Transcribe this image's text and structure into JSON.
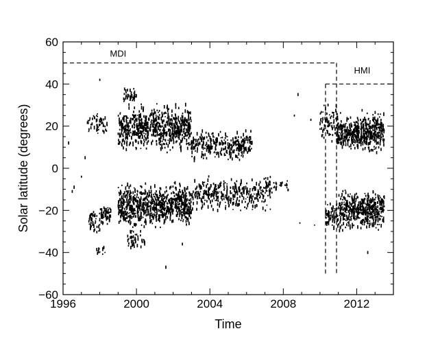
{
  "chart_data": {
    "type": "scatter",
    "xlabel": "Time",
    "ylabel": "Solar latitude (degrees)",
    "xlim": [
      1996,
      2014
    ],
    "ylim": [
      -60,
      60
    ],
    "x_ticks": [
      1996,
      2000,
      2004,
      2008,
      2012
    ],
    "y_ticks": [
      -60,
      -40,
      -20,
      0,
      20,
      40,
      60
    ],
    "x_tick_labels": [
      "1996",
      "2000",
      "2004",
      "2008",
      "2012"
    ],
    "y_tick_labels": [
      "−60",
      "−40",
      "−20",
      "0",
      "20",
      "40",
      "60"
    ],
    "grid": false,
    "legend": "none",
    "marker_color": "#000000",
    "annotations": [
      {
        "label": "MDI",
        "x": 1999.0,
        "y": 53
      },
      {
        "label": "HMI",
        "x": 2012.3,
        "y": 45
      }
    ],
    "instrument_windows": [
      {
        "name": "MDI",
        "x": [
          1996,
          2010.9
        ],
        "y_top": 50,
        "y_bottom": -50
      },
      {
        "name": "HMI",
        "x": [
          2010.3,
          2014
        ],
        "y_top": 40,
        "y_bottom": -50
      }
    ],
    "clusters": [
      {
        "name": "north-1997",
        "x": [
          1997.3,
          1998.4
        ],
        "y": [
          15,
          28
        ],
        "n": 50
      },
      {
        "name": "north-1999-2003",
        "x": [
          1999.0,
          2003.0
        ],
        "y": [
          6,
          32
        ],
        "n": 700
      },
      {
        "name": "north-1999-peak",
        "x": [
          1999.3,
          2000.0
        ],
        "y": [
          30,
          39
        ],
        "n": 40
      },
      {
        "name": "north-2003-2006",
        "x": [
          2003.0,
          2006.3
        ],
        "y": [
          2,
          20
        ],
        "n": 300
      },
      {
        "name": "north-2010-2011",
        "x": [
          2010.0,
          2011.0
        ],
        "y": [
          10,
          32
        ],
        "n": 80
      },
      {
        "name": "north-2011-2013",
        "x": [
          2010.9,
          2013.5
        ],
        "y": [
          6,
          28
        ],
        "n": 500
      },
      {
        "name": "south-1997",
        "x": [
          1997.4,
          1998.0
        ],
        "y": [
          -32,
          -18
        ],
        "n": 40
      },
      {
        "name": "south-1998",
        "x": [
          1998.0,
          1998.6
        ],
        "y": [
          -28,
          -16
        ],
        "n": 60
      },
      {
        "name": "south-1998-deep",
        "x": [
          1997.8,
          1998.3
        ],
        "y": [
          -43,
          -36
        ],
        "n": 12
      },
      {
        "name": "south-1999-2003",
        "x": [
          1999.0,
          2003.0
        ],
        "y": [
          -30,
          -5
        ],
        "n": 800
      },
      {
        "name": "south-1999-deep",
        "x": [
          1999.5,
          2000.5
        ],
        "y": [
          -40,
          -28
        ],
        "n": 40
      },
      {
        "name": "south-2003-2007",
        "x": [
          2003.0,
          2007.3
        ],
        "y": [
          -22,
          -3
        ],
        "n": 350
      },
      {
        "name": "south-2007-2008",
        "x": [
          2007.0,
          2008.3
        ],
        "y": [
          -12,
          -4
        ],
        "n": 40
      },
      {
        "name": "south-2010-2011",
        "x": [
          2010.3,
          2011.0
        ],
        "y": [
          -32,
          -15
        ],
        "n": 60
      },
      {
        "name": "south-2011-2013",
        "x": [
          2011.0,
          2013.5
        ],
        "y": [
          -32,
          -8
        ],
        "n": 500
      }
    ],
    "isolated_points": [
      [
        1996.3,
        12
      ],
      [
        1996.5,
        -11
      ],
      [
        1996.6,
        -9
      ],
      [
        1997.0,
        -4
      ],
      [
        1997.2,
        5
      ],
      [
        1997.5,
        -27
      ],
      [
        1998.0,
        42
      ],
      [
        2001.6,
        -47
      ],
      [
        2002.5,
        -36
      ],
      [
        2008.6,
        25
      ],
      [
        2008.8,
        35
      ],
      [
        2008.9,
        -26
      ],
      [
        2009.5,
        23
      ],
      [
        2009.7,
        -27
      ],
      [
        2012.6,
        -40
      ],
      [
        2008.2,
        -8
      ]
    ]
  }
}
